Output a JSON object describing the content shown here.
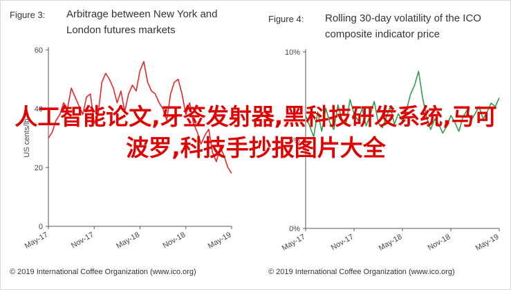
{
  "charts": {
    "left": {
      "figure_label": "Figure 3:",
      "title_line1": "Arbitrage between New York and",
      "title_line2": "London futures markets",
      "credit": "© 2019 International Coffee Organization (www.ico.org)"
    },
    "right": {
      "figure_label": "Figure 4:",
      "title_line1": "Rolling 30-day volatility of the ICO",
      "title_line2": "composite indicator price",
      "credit": "© 2019 International Coffee Organization (www.ico.org)"
    }
  },
  "overlay_text": "人工智能论文,牙签发射器,黑科技研发系统,马可波罗,科技手抄报图片大全",
  "colors": {
    "left_series": "#e8242b",
    "right_series": "#2e9e4a",
    "overlay": "#e10000"
  },
  "chart_data": [
    {
      "type": "line",
      "title": "Arbitrage between New York and London futures markets",
      "ylabel": "US cents/lb",
      "xlabel": "",
      "ylim": [
        0,
        60
      ],
      "yticks": [
        0,
        20,
        40,
        60
      ],
      "x_tick_labels": [
        "May-17",
        "Nov-17",
        "May-18",
        "Nov-18",
        "May-19"
      ],
      "x_range": [
        0,
        24
      ],
      "series": [
        {
          "x": [
            0,
            0.5,
            1,
            1.5,
            2,
            2.5,
            3,
            3.5,
            4,
            4.5,
            5,
            5.5,
            6,
            6.5,
            7,
            7.5,
            8,
            8.5,
            9,
            9.5,
            10,
            10.5,
            11,
            11.5,
            12,
            12.5,
            13,
            13.5,
            14,
            14.5,
            15,
            15.5,
            16,
            16.5,
            17,
            17.5,
            18,
            18.5,
            19,
            19.5,
            20,
            20.5,
            21,
            21.5,
            22,
            22.5,
            23,
            23.5,
            24
          ],
          "y": [
            30,
            32,
            36,
            38,
            42,
            40,
            47,
            44,
            41,
            38,
            44,
            45,
            35,
            38,
            49,
            52,
            50,
            47,
            42,
            46,
            39,
            45,
            48,
            46,
            53,
            56,
            49,
            46,
            45,
            42,
            40,
            36,
            45,
            49,
            50,
            45,
            38,
            42,
            35,
            32,
            28,
            31,
            33,
            25,
            22,
            27,
            24,
            20,
            18
          ]
        }
      ]
    },
    {
      "type": "line",
      "title": "Rolling 30-day volatility of the ICO composite indicator price",
      "ylabel": "",
      "xlabel": "",
      "ylim": [
        0,
        10
      ],
      "yticks_labels": [
        "0%",
        "5%",
        "10%"
      ],
      "yticks": [
        0,
        5,
        10
      ],
      "x_tick_labels": [
        "May-17",
        "Nov-17",
        "May-18",
        "Nov-18",
        "May-19"
      ],
      "x_range": [
        0,
        24
      ],
      "series": [
        {
          "x": [
            0,
            0.5,
            1,
            1.5,
            2,
            2.5,
            3,
            3.5,
            4,
            4.5,
            5,
            5.5,
            6,
            6.5,
            7,
            7.5,
            8,
            8.5,
            9,
            9.5,
            10,
            10.5,
            11,
            11.5,
            12,
            12.5,
            13,
            13.5,
            14,
            14.5,
            15,
            15.5,
            16,
            16.5,
            17,
            17.5,
            18,
            18.5,
            19,
            19.5,
            20,
            20.5,
            21,
            21.5,
            22,
            22.5,
            23,
            23.5,
            24
          ],
          "y": [
            6.4,
            5.8,
            5.2,
            6.6,
            5.5,
            6.8,
            6.0,
            5.6,
            7.0,
            6.2,
            5.9,
            7.3,
            6.5,
            6.1,
            6.8,
            5.8,
            6.4,
            7.2,
            6.0,
            5.7,
            6.3,
            6.9,
            5.9,
            6.5,
            6.1,
            6.7,
            7.6,
            8.1,
            8.9,
            7.4,
            6.3,
            5.6,
            6.2,
            5.9,
            5.4,
            5.8,
            6.4,
            6.0,
            5.5,
            6.3,
            6.7,
            6.1,
            6.5,
            6.9,
            6.2,
            6.6,
            7.1,
            6.9,
            7.4
          ]
        }
      ]
    }
  ]
}
